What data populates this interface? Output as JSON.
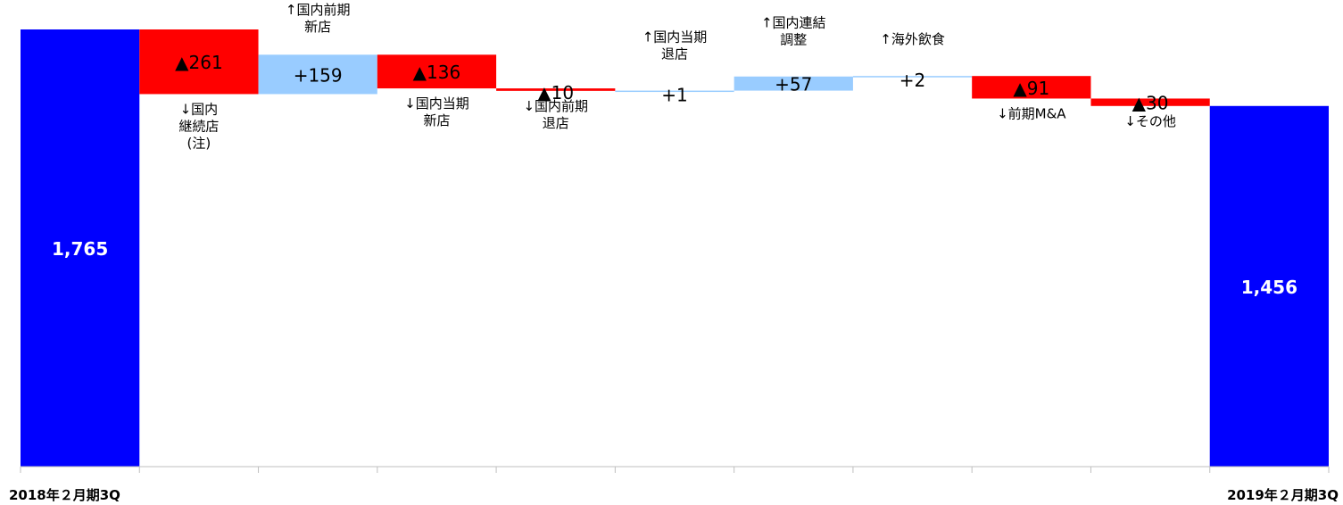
{
  "chart_data": {
    "type": "bar",
    "subtype": "waterfall",
    "title": "",
    "xlabel": "",
    "ylabel": "",
    "ylim": [
      0,
      1765
    ],
    "grid": false,
    "legend": "none",
    "colors": {
      "total": "#0000ff",
      "decrease": "#ff0000",
      "increase": "#99ccff",
      "total_label": "#ffffff",
      "step_label": "#000000",
      "axis": "#bfbfbf"
    },
    "categories": [
      "2018年２月期3Q",
      "",
      "",
      "",
      "",
      "",
      "",
      "",
      "",
      "",
      "2019年２月期3Q"
    ],
    "steps": [
      {
        "kind": "total",
        "value": 1765,
        "label": "1,765",
        "annotation": ""
      },
      {
        "kind": "decrease",
        "value": -261,
        "label": "▲261",
        "annotation": "↓国内\n継続店\n(注)"
      },
      {
        "kind": "increase",
        "value": 159,
        "label": "+159",
        "annotation": "↑国内前期\n新店"
      },
      {
        "kind": "decrease",
        "value": -136,
        "label": "▲136",
        "annotation": "↓国内当期\n新店"
      },
      {
        "kind": "decrease",
        "value": -10,
        "label": "▲10",
        "annotation": "↓国内前期\n退店"
      },
      {
        "kind": "increase",
        "value": 1,
        "label": "+1",
        "annotation": "↑国内当期\n退店"
      },
      {
        "kind": "increase",
        "value": 57,
        "label": "+57",
        "annotation": "↑国内連結\n調整"
      },
      {
        "kind": "increase",
        "value": 2,
        "label": "+2",
        "annotation": "↑海外飲食"
      },
      {
        "kind": "decrease",
        "value": -91,
        "label": "▲91",
        "annotation": "↓前期M&A"
      },
      {
        "kind": "decrease",
        "value": -30,
        "label": "▲30",
        "annotation": "↓その他"
      },
      {
        "kind": "total",
        "value": 1456,
        "label": "1,456",
        "annotation": ""
      }
    ]
  }
}
